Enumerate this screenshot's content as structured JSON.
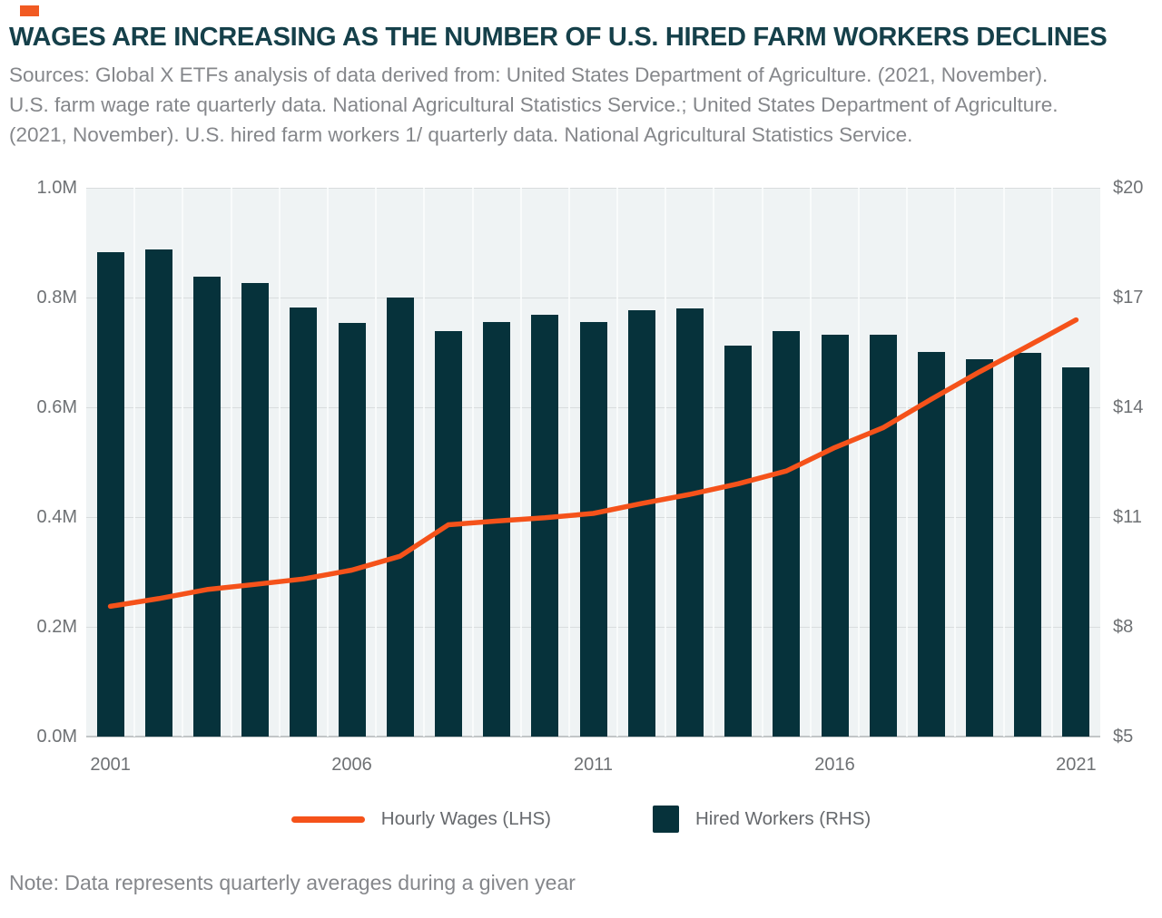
{
  "header": {
    "title": "WAGES ARE INCREASING AS THE NUMBER OF U.S. HIRED FARM WORKERS DECLINES",
    "sources_lines": [
      "Sources: Global X ETFs analysis of data derived from: United States Department of Agriculture. (2021, November).",
      "U.S. farm wage rate quarterly data. National Agricultural Statistics Service.; United States Department of Agriculture.",
      "(2021, November). U.S. hired farm workers 1/ quarterly data. National Agricultural Statistics Service."
    ]
  },
  "note": "Note: Data represents quarterly averages during a given year",
  "colors": {
    "accent": "#f15a22",
    "title": "#15404a",
    "textgray": "#85878b",
    "axisgray": "#6e7174",
    "legendgray": "#66696d",
    "bar": "#06323b",
    "line": "#f5521a",
    "plotbg": "#eff3f4",
    "grid": "#d8dcdd",
    "baseline": "#c2c6c7",
    "vgrid": "#fafcfc"
  },
  "chart_data": {
    "type": "bar",
    "subtype": "combo bar+line, dual axis",
    "x": [
      2001,
      2002,
      2003,
      2004,
      2005,
      2006,
      2007,
      2008,
      2009,
      2010,
      2011,
      2012,
      2013,
      2014,
      2015,
      2016,
      2017,
      2018,
      2019,
      2020,
      2021
    ],
    "series": [
      {
        "name": "Hourly Wages (LHS)",
        "type": "line",
        "axis": "right",
        "unit": "$ per hour",
        "values": [
          8.56,
          8.77,
          9.02,
          9.16,
          9.31,
          9.55,
          9.93,
          10.79,
          10.89,
          10.98,
          11.1,
          11.37,
          11.62,
          11.91,
          12.26,
          12.9,
          13.44,
          14.22,
          14.97,
          15.67,
          16.39
        ]
      },
      {
        "name": "Hired Workers (RHS)",
        "type": "bar",
        "axis": "left",
        "unit": "millions of workers",
        "values": [
          0.883,
          0.888,
          0.838,
          0.827,
          0.782,
          0.754,
          0.8,
          0.739,
          0.755,
          0.769,
          0.755,
          0.777,
          0.78,
          0.713,
          0.739,
          0.732,
          0.733,
          0.701,
          0.688,
          0.699,
          0.672
        ]
      }
    ],
    "left_axis": {
      "min": 0,
      "max": 1.0,
      "tick_labels": [
        "1.0M",
        "0.8M",
        "0.6M",
        "0.4M",
        "0.2M",
        "0.0M"
      ]
    },
    "right_axis": {
      "min": 5,
      "max": 20,
      "tick_labels": [
        "$20",
        "$17",
        "$14",
        "$11",
        "$8",
        "$5"
      ]
    },
    "x_tick_labels": [
      "2001",
      "2006",
      "2011",
      "2016",
      "2021"
    ],
    "legend_position": "bottom center",
    "grid": "horizontal major + faint vertical per year"
  }
}
